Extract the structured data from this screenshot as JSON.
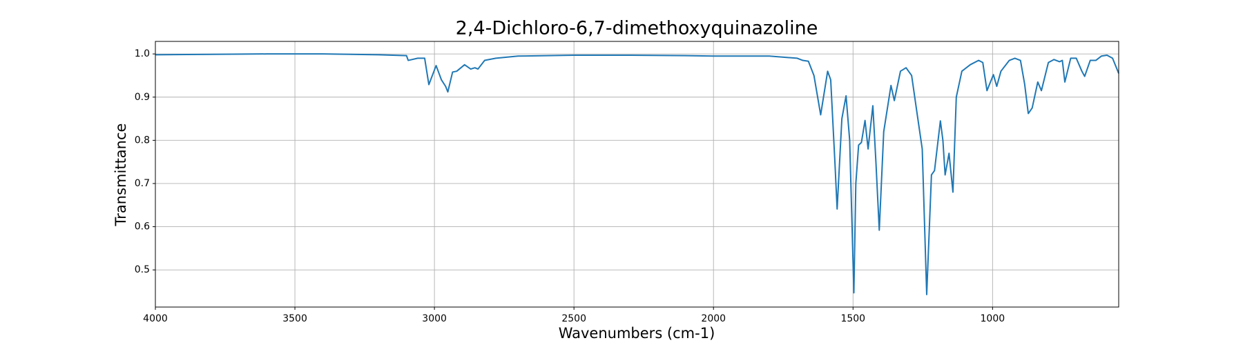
{
  "chart_data": {
    "type": "line",
    "title": "2,4-Dichloro-6,7-dimethoxyquinazoline",
    "x_label": "Wavenumbers (cm-1)",
    "y_label": "Transmittance",
    "color": "#1f77b4",
    "grid": true,
    "xlim": [
      4000,
      548
    ],
    "ylim": [
      0.414,
      1.029
    ],
    "xticks": [
      4000,
      3500,
      3000,
      2500,
      2000,
      1500,
      1000
    ],
    "yticks": [
      0.5,
      0.6,
      0.7,
      0.8,
      0.9,
      {
        "value": 1,
        "label": "1.0"
      }
    ],
    "x": [
      4000,
      3800,
      3600,
      3400,
      3200,
      3100,
      3094,
      3060,
      3035,
      3020,
      2994,
      2975,
      2960,
      2952,
      2935,
      2920,
      2892,
      2870,
      2855,
      2844,
      2820,
      2780,
      2700,
      2500,
      2300,
      2100,
      2000,
      1800,
      1700,
      1680,
      1660,
      1640,
      1616,
      1591,
      1580,
      1565,
      1557,
      1540,
      1525,
      1512,
      1497,
      1490,
      1480,
      1470,
      1457,
      1446,
      1429,
      1418,
      1406,
      1390,
      1364,
      1352,
      1330,
      1310,
      1290,
      1270,
      1252,
      1236,
      1219,
      1208,
      1187,
      1178,
      1170,
      1156,
      1142,
      1130,
      1110,
      1080,
      1050,
      1035,
      1020,
      997,
      985,
      970,
      940,
      920,
      900,
      885,
      872,
      858,
      838,
      825,
      800,
      780,
      760,
      750,
      741,
      720,
      700,
      680,
      670,
      650,
      630,
      610,
      590,
      570,
      548
    ],
    "values": [
      0.998,
      0.999,
      1.0,
      1.0,
      0.998,
      0.996,
      0.985,
      0.99,
      0.99,
      0.929,
      0.973,
      0.94,
      0.925,
      0.912,
      0.958,
      0.96,
      0.975,
      0.965,
      0.968,
      0.965,
      0.985,
      0.99,
      0.995,
      0.997,
      0.997,
      0.996,
      0.995,
      0.995,
      0.99,
      0.985,
      0.983,
      0.95,
      0.859,
      0.96,
      0.94,
      0.75,
      0.641,
      0.85,
      0.903,
      0.8,
      0.447,
      0.7,
      0.789,
      0.795,
      0.846,
      0.78,
      0.88,
      0.75,
      0.592,
      0.82,
      0.927,
      0.892,
      0.96,
      0.968,
      0.95,
      0.86,
      0.78,
      0.443,
      0.72,
      0.73,
      0.845,
      0.8,
      0.72,
      0.77,
      0.68,
      0.9,
      0.96,
      0.975,
      0.985,
      0.98,
      0.915,
      0.952,
      0.925,
      0.96,
      0.985,
      0.99,
      0.985,
      0.93,
      0.862,
      0.875,
      0.935,
      0.915,
      0.98,
      0.987,
      0.982,
      0.985,
      0.935,
      0.99,
      0.99,
      0.96,
      0.948,
      0.985,
      0.985,
      0.995,
      0.997,
      0.99,
      0.955
    ]
  }
}
